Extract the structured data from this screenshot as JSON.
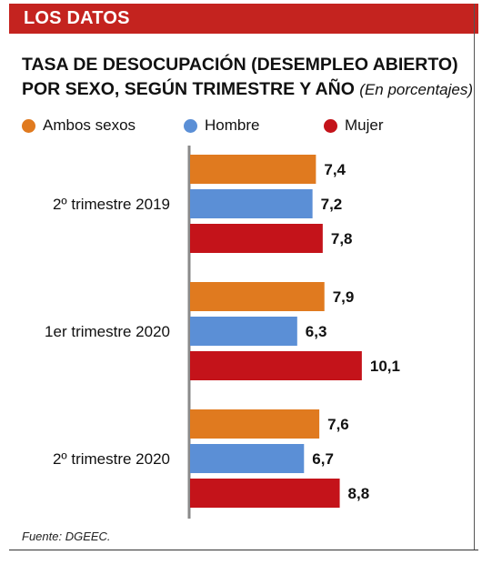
{
  "header": {
    "label": "LOS DATOS"
  },
  "chart_data": {
    "type": "bar",
    "orientation": "horizontal",
    "title_line1": "TASA DE DESOCUPACIÓN (DESEMPLEO ABIERTO)",
    "title_line2": "POR SEXO, SEGÚN TRIMESTRE Y AÑO",
    "subtitle": "(En porcentajes)",
    "categories": [
      "2º trimestre 2019",
      "1er trimestre 2020",
      "2º trimestre 2020"
    ],
    "series": [
      {
        "name": "Ambos sexos",
        "color": "#e07a1f",
        "values": [
          7.4,
          7.9,
          7.6
        ],
        "labels": [
          "7,4",
          "7,9",
          "7,6"
        ]
      },
      {
        "name": "Hombre",
        "color": "#5b8fd6",
        "values": [
          7.2,
          6.3,
          6.7
        ],
        "labels": [
          "7,2",
          "6,3",
          "6,7"
        ]
      },
      {
        "name": "Mujer",
        "color": "#c4131a",
        "values": [
          7.8,
          10.1,
          8.8
        ],
        "labels": [
          "7,8",
          "10,1",
          "8,8"
        ]
      }
    ],
    "legend_position": "top",
    "grid": false
  },
  "source": "Fuente: DGEEC."
}
